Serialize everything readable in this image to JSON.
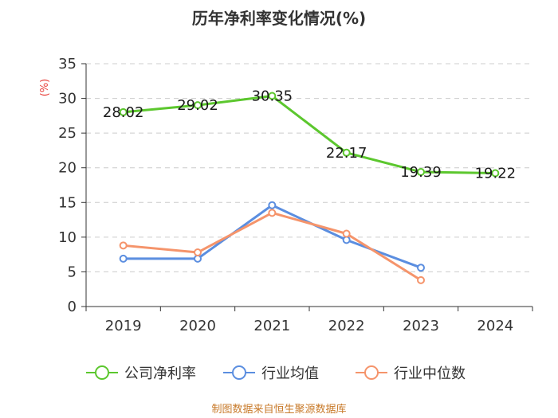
{
  "chart_data": {
    "type": "line",
    "title": "历年净利率变化情况(%)",
    "ylabel": "(%)",
    "xlabel": "",
    "categories": [
      "2019",
      "2020",
      "2021",
      "2022",
      "2023",
      "2024"
    ],
    "ylim": [
      0,
      35
    ],
    "yticks": [
      0,
      5,
      10,
      15,
      20,
      25,
      30,
      35
    ],
    "grid": "horizontal-dashed",
    "legend_position": "bottom",
    "series": [
      {
        "name": "公司净利率",
        "color": "#5cc72e",
        "values": [
          28.02,
          29.02,
          30.35,
          22.17,
          19.39,
          19.22
        ],
        "labels": [
          "28.02",
          "29.02",
          "30.35",
          "22.17",
          "19.39",
          "19.22"
        ]
      },
      {
        "name": "行业均值",
        "color": "#5b8ee0",
        "values": [
          6.9,
          6.9,
          14.6,
          9.6,
          5.6,
          null
        ]
      },
      {
        "name": "行业中位数",
        "color": "#f5946b",
        "values": [
          8.8,
          7.8,
          13.5,
          10.5,
          3.8,
          null
        ]
      }
    ],
    "source": "制图数据来自恒生聚源数据库"
  }
}
